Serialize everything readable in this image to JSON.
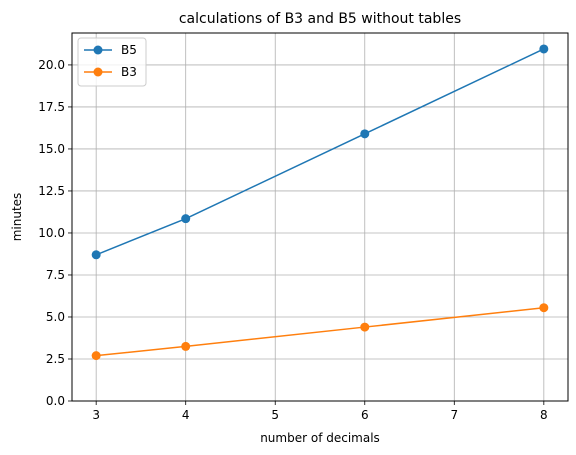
{
  "chart_data": {
    "type": "line",
    "title": "calculations of B3 and B5 without tables",
    "xlabel": "number of decimals",
    "ylabel": "minutes",
    "xlim": [
      2.73,
      8.27
    ],
    "ylim": [
      0,
      21.9
    ],
    "xticks": [
      3,
      4,
      5,
      6,
      7,
      8
    ],
    "yticks": [
      0.0,
      2.5,
      5.0,
      7.5,
      10.0,
      12.5,
      15.0,
      17.5,
      20.0
    ],
    "xtick_labels": [
      "3",
      "4",
      "5",
      "6",
      "7",
      "8"
    ],
    "ytick_labels": [
      "0.0",
      "2.5",
      "5.0",
      "7.5",
      "10.0",
      "12.5",
      "15.0",
      "17.5",
      "20.0"
    ],
    "grid": true,
    "legend_position": "top-left",
    "series": [
      {
        "name": "B5",
        "color": "#1f77b4",
        "x": [
          3,
          4,
          6,
          8
        ],
        "y": [
          8.7,
          10.85,
          15.9,
          20.95
        ]
      },
      {
        "name": "B3",
        "color": "#ff7f0e",
        "x": [
          3,
          4,
          6,
          8
        ],
        "y": [
          2.7,
          3.25,
          4.4,
          5.55
        ]
      }
    ]
  }
}
